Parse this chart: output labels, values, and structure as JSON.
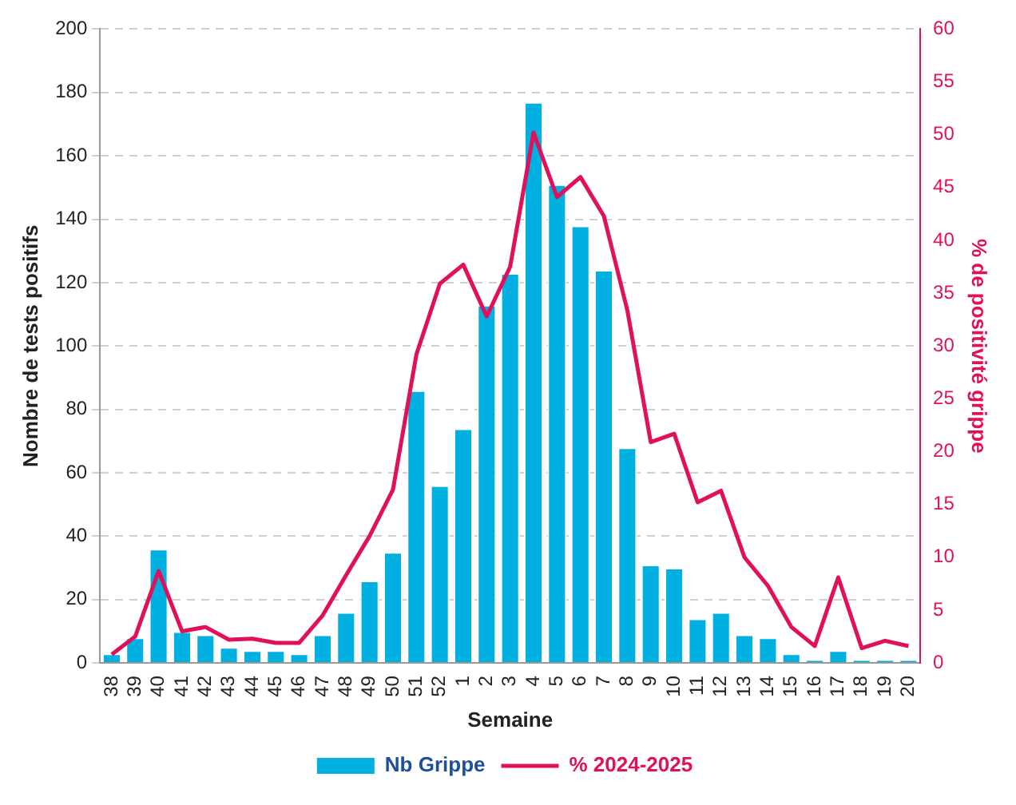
{
  "chart_data": {
    "type": "bar",
    "xlabel": "Semaine",
    "ylabel": "Nombre de tests positifs",
    "y2label": "% de positivité grippe",
    "categories": [
      "38",
      "39",
      "40",
      "41",
      "42",
      "43",
      "44",
      "45",
      "46",
      "47",
      "48",
      "49",
      "50",
      "51",
      "52",
      "1",
      "2",
      "3",
      "4",
      "5",
      "6",
      "7",
      "8",
      "9",
      "10",
      "11",
      "12",
      "13",
      "14",
      "15",
      "16",
      "17",
      "18",
      "19",
      "20"
    ],
    "series": [
      {
        "name": "Nb Grippe",
        "color": "#00b0e0",
        "values": [
          3,
          8,
          36,
          10,
          9,
          5,
          4,
          4,
          3,
          9,
          16,
          26,
          35,
          86,
          56,
          74,
          113,
          123,
          177,
          151,
          138,
          124,
          68,
          31,
          30,
          14,
          16,
          9,
          8,
          3,
          1,
          4,
          1,
          1,
          1
        ]
      },
      {
        "name": "% 2024-2025",
        "type": "line",
        "axis": "y2",
        "color": "#e0105a",
        "values": [
          0.8,
          2.5,
          8.7,
          3,
          3.4,
          2.2,
          2.3,
          1.9,
          1.9,
          4.5,
          8.3,
          12,
          16.4,
          29.2,
          35.9,
          37.7,
          32.8,
          37.5,
          50.2,
          44.1,
          46,
          42.3,
          33.4,
          20.9,
          21.7,
          15.2,
          16.3,
          10,
          7.3,
          3.4,
          1.6,
          8.1,
          1.4,
          2.1,
          1.6
        ]
      }
    ],
    "ylim": [
      0,
      200
    ],
    "yticks": [
      0,
      20,
      40,
      60,
      80,
      100,
      120,
      140,
      160,
      180,
      200
    ],
    "y2lim": [
      0,
      60
    ],
    "y2ticks": [
      0,
      5,
      10,
      15,
      20,
      25,
      30,
      35,
      40,
      45,
      50,
      55,
      60
    ],
    "grid": "y",
    "legend": "bottom",
    "marker": "none",
    "line_style": "solid"
  }
}
